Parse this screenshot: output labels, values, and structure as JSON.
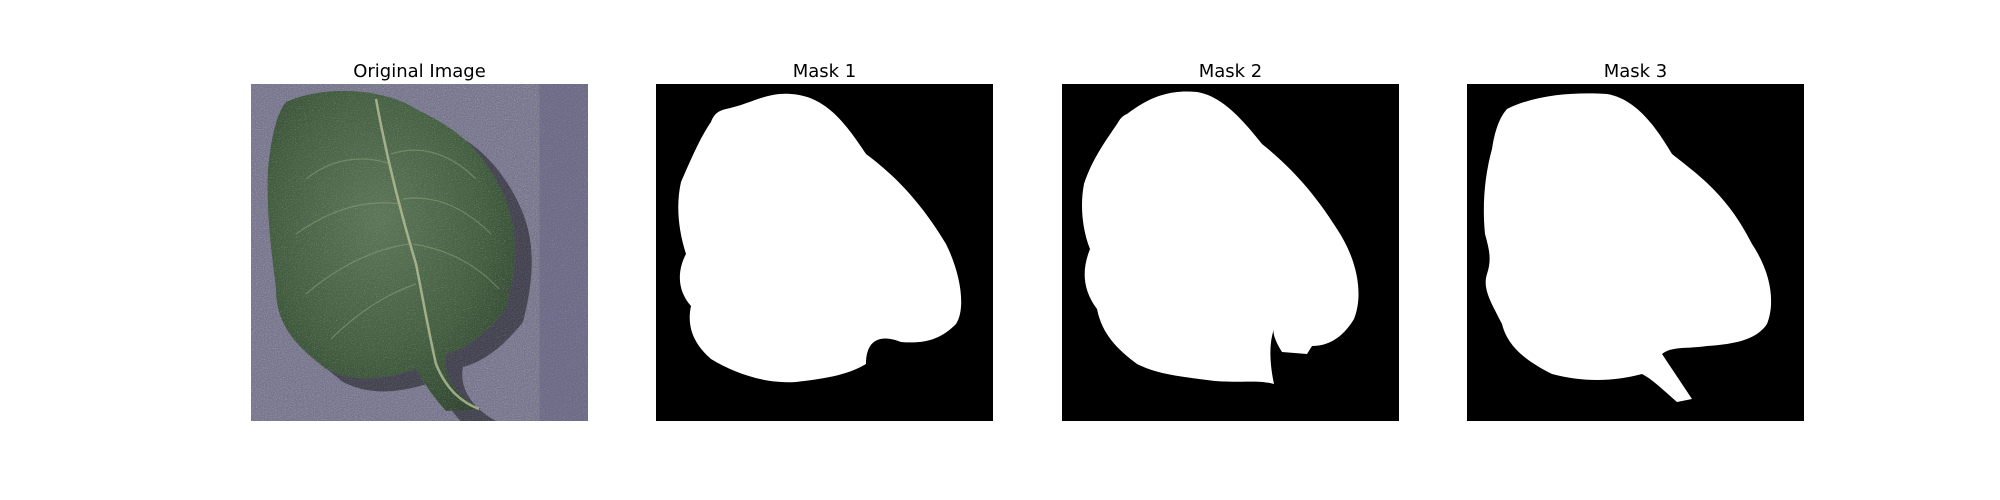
{
  "figure": {
    "panels": [
      {
        "title": "Original Image",
        "kind": "photo",
        "alt": "leaf-photo"
      },
      {
        "title": "Mask 1",
        "kind": "mask"
      },
      {
        "title": "Mask 2",
        "kind": "mask"
      },
      {
        "title": "Mask 3",
        "kind": "mask"
      }
    ]
  },
  "colors": {
    "background": "#ffffff",
    "mask_background": "#000000",
    "mask_foreground": "#ffffff",
    "photo_background": "#6b6a85",
    "leaf_green": "#3f5a3c"
  }
}
